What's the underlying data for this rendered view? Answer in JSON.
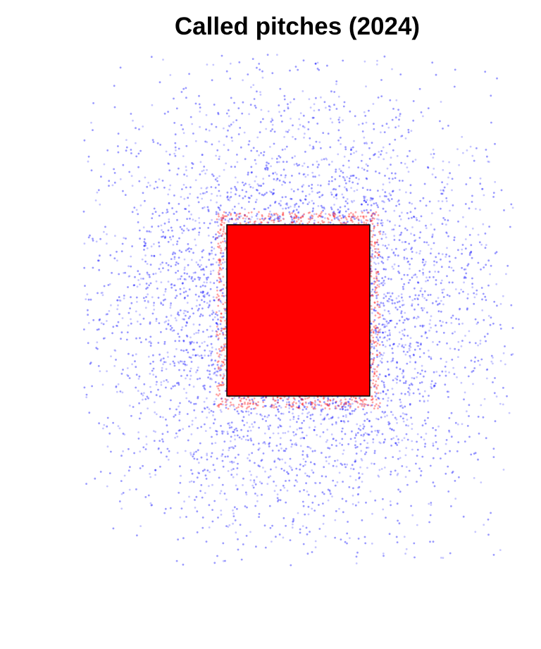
{
  "chart_data": {
    "type": "scatter",
    "title": "Called pitches (2024)",
    "xlabel": "",
    "ylabel": "",
    "axes_visible": false,
    "grid": false,
    "legend": "none",
    "xlim": [
      -2.5,
      2.5
    ],
    "ylim": [
      -0.5,
      5.5
    ],
    "strike_zone": {
      "x": [
        -0.83,
        0.83
      ],
      "y": [
        1.5,
        3.5
      ]
    },
    "series": [
      {
        "outcome": "ball",
        "color": "#0000ff",
        "opacity": 0.22,
        "distribution": {
          "x_center": 0.0,
          "x_spread": 1.15,
          "y_center": 2.5,
          "y_spread": 1.25,
          "excludes_strike_zone": true
        }
      },
      {
        "outcome": "called_strike",
        "color": "#ff0000",
        "opacity": 0.35,
        "distribution": {
          "x_range": [
            -0.95,
            0.95
          ],
          "y_range": [
            1.35,
            3.65
          ]
        }
      }
    ],
    "zone_edge_color": "#000000"
  }
}
